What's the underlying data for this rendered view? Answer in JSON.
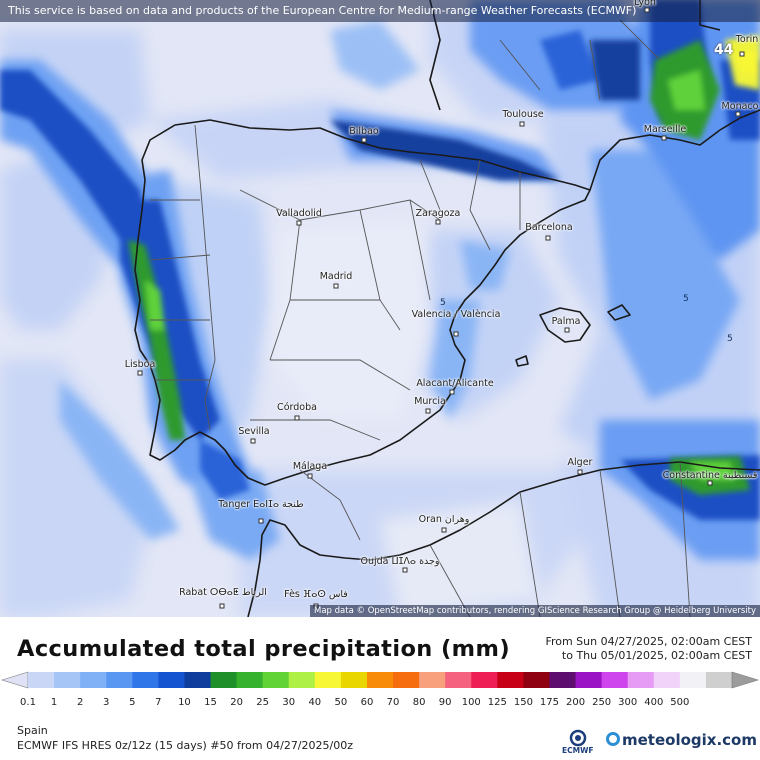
{
  "banner": "This service is based on data and products of the European Centre for Medium-range Weather Forecasts (ECMWF)",
  "attribution": "Map data © OpenStreetMap contributors, rendering GIScience Research Group @ Heidelberg University",
  "cities": [
    {
      "name": "Lyon",
      "id": "lyon"
    },
    {
      "name": "Torin",
      "id": "torino"
    },
    {
      "name": "Monaco",
      "id": "monaco"
    },
    {
      "name": "Marseille",
      "id": "marseille"
    },
    {
      "name": "Toulouse",
      "id": "toulouse"
    },
    {
      "name": "Bilbao",
      "id": "bilbao"
    },
    {
      "name": "Valladolid",
      "id": "valladolid"
    },
    {
      "name": "Zaragoza",
      "id": "zaragoza"
    },
    {
      "name": "Barcelona",
      "id": "barcelona"
    },
    {
      "name": "Madrid",
      "id": "madrid"
    },
    {
      "name": "Valencia / València",
      "id": "valencia"
    },
    {
      "name": "Palma",
      "id": "palma"
    },
    {
      "name": "Lisboa",
      "id": "lisboa"
    },
    {
      "name": "Alacant/Alicante",
      "id": "alicante"
    },
    {
      "name": "Murcia",
      "id": "murcia"
    },
    {
      "name": "Córdoba",
      "id": "cordoba"
    },
    {
      "name": "Sevilla",
      "id": "sevilla"
    },
    {
      "name": "Málaga",
      "id": "malaga"
    },
    {
      "name": "Alger",
      "id": "alger"
    },
    {
      "name": "Constantine قسنطينة",
      "id": "constantine"
    },
    {
      "name": "Tanger ⴹⴰⵏⵊⴰ طنجة",
      "id": "tanger"
    },
    {
      "name": "Oran وهران",
      "id": "oran"
    },
    {
      "name": "Oujda ⵡⵊⴷⴰ وجدة",
      "id": "oujda"
    },
    {
      "name": "Rabat ⵔⴱⴰⵟ الرباط",
      "id": "rabat"
    },
    {
      "name": "Fès ⴼⴰⵙ فاس",
      "id": "fes"
    }
  ],
  "contour_values": [
    "5",
    "5",
    "5"
  ],
  "max_value": "44",
  "title": "Accumulated total precipitation (mm)",
  "period": {
    "from": "From Sun 04/27/2025, 02:00am CEST",
    "to": "to Thu 05/01/2025, 02:00am CEST"
  },
  "legend": {
    "ticks": [
      "0.1",
      "1",
      "2",
      "3",
      "5",
      "7",
      "10",
      "15",
      "20",
      "25",
      "30",
      "40",
      "50",
      "60",
      "70",
      "80",
      "90",
      "100",
      "125",
      "150",
      "175",
      "200",
      "250",
      "300",
      "400",
      "500"
    ],
    "colors": [
      "#dfe1f4",
      "#c9d6f6",
      "#a6c5f7",
      "#80b0f5",
      "#5a97f2",
      "#2f77e8",
      "#1554d0",
      "#0f3d9e",
      "#1f8f2a",
      "#36b22e",
      "#62d336",
      "#aef045",
      "#f8f735",
      "#e9d600",
      "#f88c08",
      "#f66d10",
      "#f8a07c",
      "#f4627f",
      "#ee1f54",
      "#c70017",
      "#8f0011",
      "#5d0d6e",
      "#9a14c6",
      "#cf45ed",
      "#e69cf4",
      "#f1d2f8",
      "#f2f2f6",
      "#cfcfcf",
      "#9c9c9c"
    ]
  },
  "region": "Spain",
  "model_line": "ECMWF IFS HRES 0z/12z (15 days) #50 from  04/27/2025/00z",
  "ecmwf_label": "ECMWF",
  "brand": "meteologix.com"
}
